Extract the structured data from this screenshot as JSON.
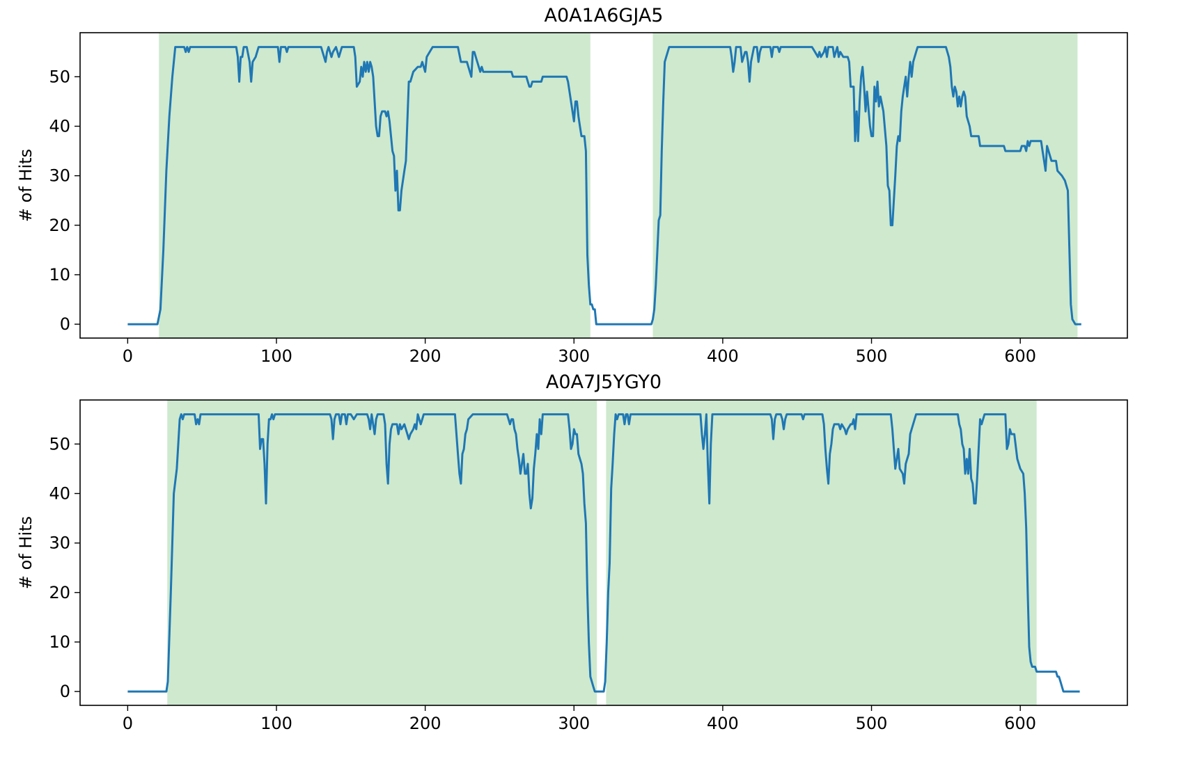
{
  "chart_data": [
    {
      "type": "line",
      "title": "A0A1A6GJA5",
      "ylabel": "# of Hits",
      "color": "#1f77b4",
      "shade_color": "#2ca02c",
      "shaded_regions": [
        [
          21,
          311
        ],
        [
          353,
          638.5
        ]
      ],
      "xlim": [
        -32,
        672
      ],
      "ylim": [
        -2.8,
        58.9
      ],
      "xticks": [
        0,
        100,
        200,
        300,
        400,
        500,
        600
      ],
      "yticks": [
        0,
        10,
        20,
        30,
        40,
        50
      ],
      "x": [
        0,
        20,
        22,
        24,
        26,
        28,
        30,
        32,
        38,
        39,
        40,
        41,
        42,
        73,
        74,
        75,
        76,
        77,
        78,
        80,
        82,
        83,
        84,
        86,
        88,
        101,
        102,
        103,
        106,
        107,
        108,
        130,
        132,
        133,
        134,
        135,
        137,
        138,
        140,
        142,
        144,
        152,
        153,
        154,
        156,
        157,
        158,
        159,
        160,
        161,
        162,
        163,
        164,
        165,
        166,
        167,
        168,
        169,
        170,
        171,
        173,
        174,
        175,
        176,
        177,
        178,
        179,
        180,
        181,
        182,
        183,
        184,
        186,
        187,
        189,
        190,
        192,
        195,
        197,
        198,
        200,
        201,
        203,
        205,
        222,
        224,
        228,
        229,
        231,
        232,
        233,
        235,
        237,
        238,
        239,
        258,
        259,
        268,
        269,
        270,
        271,
        272,
        278,
        279,
        295,
        296,
        298,
        300,
        301,
        302,
        303,
        304,
        305,
        307,
        308,
        309,
        310,
        311,
        312,
        313,
        314,
        315,
        352,
        353,
        354,
        355,
        357,
        358,
        359,
        360,
        361,
        362,
        364,
        405,
        406,
        407,
        408,
        409,
        412,
        413,
        415,
        416,
        417,
        418,
        419,
        421,
        423,
        424,
        425,
        426,
        432,
        433,
        434,
        437,
        438,
        439,
        460,
        462,
        464,
        465,
        466,
        468,
        469,
        470,
        471,
        474,
        475,
        476,
        477,
        478,
        479,
        481,
        484,
        485,
        486,
        488,
        489,
        490,
        491,
        492,
        493,
        494,
        495,
        496,
        497,
        499,
        500,
        501,
        502,
        503,
        504,
        505,
        506,
        508,
        510,
        511,
        512,
        513,
        514,
        515,
        516,
        517,
        518,
        519,
        520,
        521,
        522,
        523,
        524,
        525,
        526,
        527,
        528,
        530,
        531,
        550,
        552,
        553,
        554,
        555,
        556,
        557,
        558,
        559,
        560,
        561,
        562,
        563,
        564,
        566,
        567,
        572,
        573,
        589,
        590,
        600,
        601,
        603,
        604,
        605,
        606,
        607,
        608,
        614,
        615,
        616,
        617,
        618,
        619,
        620,
        621,
        624,
        625,
        628,
        630,
        632,
        634,
        635,
        637,
        641
      ],
      "values": [
        0,
        0,
        3,
        15,
        31,
        42,
        50,
        56,
        56,
        55,
        56,
        55,
        56,
        56,
        54,
        49,
        54,
        54,
        56,
        56,
        53,
        49,
        53,
        54,
        56,
        56,
        53,
        56,
        56,
        55,
        56,
        56,
        54,
        53,
        55,
        56,
        54,
        55,
        56,
        54,
        56,
        56,
        54,
        48,
        49,
        52,
        50,
        53,
        51,
        53,
        51,
        53,
        52,
        50,
        45,
        40,
        38,
        38,
        42,
        43,
        43,
        42,
        43,
        41,
        38,
        35,
        34,
        27,
        31,
        23,
        23,
        27,
        31,
        33,
        49,
        49,
        51,
        52,
        52,
        53,
        51,
        54,
        55,
        56,
        56,
        53,
        53,
        52,
        50,
        55,
        55,
        53,
        51,
        52,
        51,
        51,
        50,
        50,
        49,
        48,
        48,
        49,
        49,
        50,
        50,
        49,
        45,
        41,
        45,
        45,
        42,
        40,
        38,
        38,
        35,
        14,
        8,
        4,
        4,
        3,
        3,
        0,
        0,
        1,
        3,
        8,
        21,
        22,
        35,
        45,
        53,
        54,
        56,
        56,
        54,
        51,
        53,
        56,
        56,
        53,
        55,
        55,
        53,
        49,
        53,
        56,
        56,
        53,
        55,
        56,
        56,
        54,
        56,
        56,
        55,
        56,
        56,
        55,
        54,
        55,
        54,
        55,
        56,
        54,
        56,
        56,
        54,
        55,
        56,
        54,
        55,
        54,
        54,
        53,
        48,
        48,
        37,
        43,
        37,
        45,
        50,
        52,
        48,
        43,
        47,
        40,
        38,
        38,
        48,
        45,
        49,
        44,
        46,
        43,
        36,
        28,
        27,
        20,
        20,
        25,
        30,
        36,
        38,
        37,
        43,
        46,
        48,
        50,
        46,
        50,
        53,
        50,
        53,
        55,
        56,
        56,
        54,
        52,
        48,
        46,
        48,
        47,
        44,
        46,
        44,
        46,
        47,
        46,
        42,
        40,
        38,
        38,
        36,
        36,
        35,
        35,
        36,
        36,
        35,
        37,
        36,
        37,
        37,
        37,
        35,
        33,
        31,
        36,
        35,
        34,
        33,
        33,
        31,
        30,
        29,
        27,
        4,
        1,
        0,
        0
      ]
    },
    {
      "type": "line",
      "title": "A0A7J5YGY0",
      "ylabel": "# of Hits",
      "color": "#1f77b4",
      "shade_color": "#2ca02c",
      "shaded_regions": [
        [
          26.6,
          315.4
        ],
        [
          321.6,
          611
        ]
      ],
      "xlim": [
        -32,
        672
      ],
      "ylim": [
        -2.8,
        58.9
      ],
      "xticks": [
        0,
        100,
        200,
        300,
        400,
        500,
        600
      ],
      "yticks": [
        0,
        10,
        20,
        30,
        40,
        50
      ],
      "x": [
        0,
        26,
        27,
        29,
        31,
        33,
        35,
        36,
        37,
        38,
        45,
        46,
        47,
        48,
        49,
        88,
        89,
        90,
        91,
        92,
        93,
        94,
        95,
        96,
        97,
        98,
        99,
        136,
        137,
        138,
        139,
        140,
        142,
        143,
        144,
        146,
        147,
        148,
        150,
        152,
        154,
        161,
        162,
        163,
        164,
        166,
        167,
        168,
        172,
        173,
        174,
        175,
        176,
        177,
        178,
        181,
        182,
        183,
        184,
        186,
        188,
        189,
        190,
        192,
        193,
        194,
        195,
        197,
        198,
        199,
        220,
        221,
        222,
        223,
        224,
        225,
        226,
        227,
        228,
        229,
        232,
        255,
        256,
        257,
        258,
        259,
        260,
        261,
        262,
        263,
        264,
        265,
        266,
        267,
        268,
        269,
        270,
        271,
        272,
        273,
        274,
        275,
        276,
        277,
        278,
        279,
        296,
        297,
        298,
        299,
        300,
        301,
        302,
        303,
        305,
        306,
        307,
        308,
        309,
        310,
        311,
        313,
        314,
        320,
        321,
        322,
        323,
        324,
        325,
        326,
        327,
        328,
        329,
        330,
        333,
        334,
        335,
        336,
        337,
        338,
        385,
        386,
        387,
        388,
        389,
        390,
        391,
        392,
        393,
        432,
        433,
        434,
        435,
        436,
        439,
        440,
        441,
        442,
        443,
        453,
        454,
        455,
        467,
        468,
        469,
        470,
        471,
        472,
        473,
        474,
        475,
        478,
        479,
        480,
        482,
        483,
        484,
        486,
        487,
        488,
        489,
        490,
        513,
        514,
        515,
        516,
        518,
        519,
        521,
        522,
        523,
        524,
        525,
        526,
        527,
        530,
        558,
        559,
        560,
        561,
        562,
        563,
        564,
        565,
        566,
        567,
        568,
        569,
        570,
        571,
        572,
        573,
        574,
        576,
        590,
        591,
        592,
        593,
        594,
        596,
        598,
        600,
        602,
        603,
        604,
        605,
        606,
        607,
        608,
        610,
        611,
        624,
        625,
        626,
        627,
        628,
        629,
        640
      ],
      "values": [
        0,
        0,
        2,
        20,
        40,
        45,
        55,
        56,
        55,
        56,
        56,
        54,
        55,
        54,
        56,
        56,
        49,
        51,
        51,
        46,
        38,
        50,
        55,
        55,
        56,
        55,
        56,
        56,
        55,
        51,
        55,
        56,
        56,
        54,
        56,
        56,
        54,
        56,
        56,
        55,
        56,
        56,
        55,
        53,
        56,
        52,
        55,
        56,
        56,
        54,
        46,
        42,
        50,
        53,
        54,
        54,
        52,
        54,
        53,
        54,
        52,
        51,
        52,
        53,
        54,
        53,
        56,
        54,
        55,
        56,
        56,
        52,
        48,
        44,
        42,
        48,
        49,
        52,
        53,
        55,
        56,
        56,
        55,
        54,
        55,
        55,
        53,
        52,
        49,
        47,
        44,
        46,
        48,
        44,
        44,
        46,
        40,
        37,
        39,
        45,
        48,
        52,
        49,
        55,
        52,
        56,
        56,
        53,
        49,
        50,
        53,
        52,
        52,
        48,
        46,
        44,
        38,
        34,
        20,
        10,
        3,
        1,
        0,
        0,
        2,
        10,
        20,
        26,
        41,
        46,
        52,
        56,
        55,
        56,
        56,
        54,
        56,
        56,
        54,
        56,
        56,
        52,
        49,
        52,
        56,
        46,
        38,
        50,
        56,
        56,
        55,
        51,
        55,
        56,
        56,
        55,
        53,
        55,
        56,
        56,
        55,
        56,
        56,
        54,
        49,
        45,
        42,
        48,
        50,
        53,
        54,
        54,
        53,
        54,
        53,
        52,
        53,
        54,
        54,
        55,
        53,
        56,
        56,
        53,
        49,
        45,
        49,
        45,
        44,
        42,
        46,
        47,
        48,
        52,
        53,
        56,
        56,
        54,
        53,
        50,
        49,
        44,
        47,
        44,
        49,
        43,
        42,
        38,
        38,
        43,
        49,
        55,
        54,
        56,
        56,
        49,
        50,
        53,
        52,
        52,
        47,
        45,
        44,
        40,
        33,
        20,
        9,
        6,
        5,
        5,
        4,
        4,
        3,
        3,
        2,
        1,
        0,
        0
      ]
    }
  ]
}
